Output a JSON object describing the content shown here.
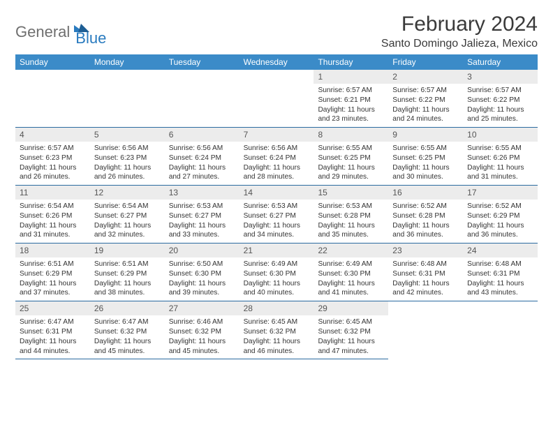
{
  "logo": {
    "text1": "General",
    "text2": "Blue"
  },
  "title": "February 2024",
  "location": "Santo Domingo Jalieza, Mexico",
  "colors": {
    "header_bg": "#3b8bc8",
    "header_text": "#ffffff",
    "daynum_bg": "#ececec",
    "daynum_text": "#555555",
    "cell_border": "#2a6aa0",
    "body_text": "#333333",
    "logo_gray": "#6f6f6f",
    "logo_blue": "#2a7bbf"
  },
  "weekdays": [
    "Sunday",
    "Monday",
    "Tuesday",
    "Wednesday",
    "Thursday",
    "Friday",
    "Saturday"
  ],
  "weeks": [
    [
      null,
      null,
      null,
      null,
      {
        "n": "1",
        "sunrise": "Sunrise: 6:57 AM",
        "sunset": "Sunset: 6:21 PM",
        "daylight": "Daylight: 11 hours and 23 minutes."
      },
      {
        "n": "2",
        "sunrise": "Sunrise: 6:57 AM",
        "sunset": "Sunset: 6:22 PM",
        "daylight": "Daylight: 11 hours and 24 minutes."
      },
      {
        "n": "3",
        "sunrise": "Sunrise: 6:57 AM",
        "sunset": "Sunset: 6:22 PM",
        "daylight": "Daylight: 11 hours and 25 minutes."
      }
    ],
    [
      {
        "n": "4",
        "sunrise": "Sunrise: 6:57 AM",
        "sunset": "Sunset: 6:23 PM",
        "daylight": "Daylight: 11 hours and 26 minutes."
      },
      {
        "n": "5",
        "sunrise": "Sunrise: 6:56 AM",
        "sunset": "Sunset: 6:23 PM",
        "daylight": "Daylight: 11 hours and 26 minutes."
      },
      {
        "n": "6",
        "sunrise": "Sunrise: 6:56 AM",
        "sunset": "Sunset: 6:24 PM",
        "daylight": "Daylight: 11 hours and 27 minutes."
      },
      {
        "n": "7",
        "sunrise": "Sunrise: 6:56 AM",
        "sunset": "Sunset: 6:24 PM",
        "daylight": "Daylight: 11 hours and 28 minutes."
      },
      {
        "n": "8",
        "sunrise": "Sunrise: 6:55 AM",
        "sunset": "Sunset: 6:25 PM",
        "daylight": "Daylight: 11 hours and 29 minutes."
      },
      {
        "n": "9",
        "sunrise": "Sunrise: 6:55 AM",
        "sunset": "Sunset: 6:25 PM",
        "daylight": "Daylight: 11 hours and 30 minutes."
      },
      {
        "n": "10",
        "sunrise": "Sunrise: 6:55 AM",
        "sunset": "Sunset: 6:26 PM",
        "daylight": "Daylight: 11 hours and 31 minutes."
      }
    ],
    [
      {
        "n": "11",
        "sunrise": "Sunrise: 6:54 AM",
        "sunset": "Sunset: 6:26 PM",
        "daylight": "Daylight: 11 hours and 31 minutes."
      },
      {
        "n": "12",
        "sunrise": "Sunrise: 6:54 AM",
        "sunset": "Sunset: 6:27 PM",
        "daylight": "Daylight: 11 hours and 32 minutes."
      },
      {
        "n": "13",
        "sunrise": "Sunrise: 6:53 AM",
        "sunset": "Sunset: 6:27 PM",
        "daylight": "Daylight: 11 hours and 33 minutes."
      },
      {
        "n": "14",
        "sunrise": "Sunrise: 6:53 AM",
        "sunset": "Sunset: 6:27 PM",
        "daylight": "Daylight: 11 hours and 34 minutes."
      },
      {
        "n": "15",
        "sunrise": "Sunrise: 6:53 AM",
        "sunset": "Sunset: 6:28 PM",
        "daylight": "Daylight: 11 hours and 35 minutes."
      },
      {
        "n": "16",
        "sunrise": "Sunrise: 6:52 AM",
        "sunset": "Sunset: 6:28 PM",
        "daylight": "Daylight: 11 hours and 36 minutes."
      },
      {
        "n": "17",
        "sunrise": "Sunrise: 6:52 AM",
        "sunset": "Sunset: 6:29 PM",
        "daylight": "Daylight: 11 hours and 36 minutes."
      }
    ],
    [
      {
        "n": "18",
        "sunrise": "Sunrise: 6:51 AM",
        "sunset": "Sunset: 6:29 PM",
        "daylight": "Daylight: 11 hours and 37 minutes."
      },
      {
        "n": "19",
        "sunrise": "Sunrise: 6:51 AM",
        "sunset": "Sunset: 6:29 PM",
        "daylight": "Daylight: 11 hours and 38 minutes."
      },
      {
        "n": "20",
        "sunrise": "Sunrise: 6:50 AM",
        "sunset": "Sunset: 6:30 PM",
        "daylight": "Daylight: 11 hours and 39 minutes."
      },
      {
        "n": "21",
        "sunrise": "Sunrise: 6:49 AM",
        "sunset": "Sunset: 6:30 PM",
        "daylight": "Daylight: 11 hours and 40 minutes."
      },
      {
        "n": "22",
        "sunrise": "Sunrise: 6:49 AM",
        "sunset": "Sunset: 6:30 PM",
        "daylight": "Daylight: 11 hours and 41 minutes."
      },
      {
        "n": "23",
        "sunrise": "Sunrise: 6:48 AM",
        "sunset": "Sunset: 6:31 PM",
        "daylight": "Daylight: 11 hours and 42 minutes."
      },
      {
        "n": "24",
        "sunrise": "Sunrise: 6:48 AM",
        "sunset": "Sunset: 6:31 PM",
        "daylight": "Daylight: 11 hours and 43 minutes."
      }
    ],
    [
      {
        "n": "25",
        "sunrise": "Sunrise: 6:47 AM",
        "sunset": "Sunset: 6:31 PM",
        "daylight": "Daylight: 11 hours and 44 minutes."
      },
      {
        "n": "26",
        "sunrise": "Sunrise: 6:47 AM",
        "sunset": "Sunset: 6:32 PM",
        "daylight": "Daylight: 11 hours and 45 minutes."
      },
      {
        "n": "27",
        "sunrise": "Sunrise: 6:46 AM",
        "sunset": "Sunset: 6:32 PM",
        "daylight": "Daylight: 11 hours and 45 minutes."
      },
      {
        "n": "28",
        "sunrise": "Sunrise: 6:45 AM",
        "sunset": "Sunset: 6:32 PM",
        "daylight": "Daylight: 11 hours and 46 minutes."
      },
      {
        "n": "29",
        "sunrise": "Sunrise: 6:45 AM",
        "sunset": "Sunset: 6:32 PM",
        "daylight": "Daylight: 11 hours and 47 minutes."
      },
      null,
      null
    ]
  ]
}
